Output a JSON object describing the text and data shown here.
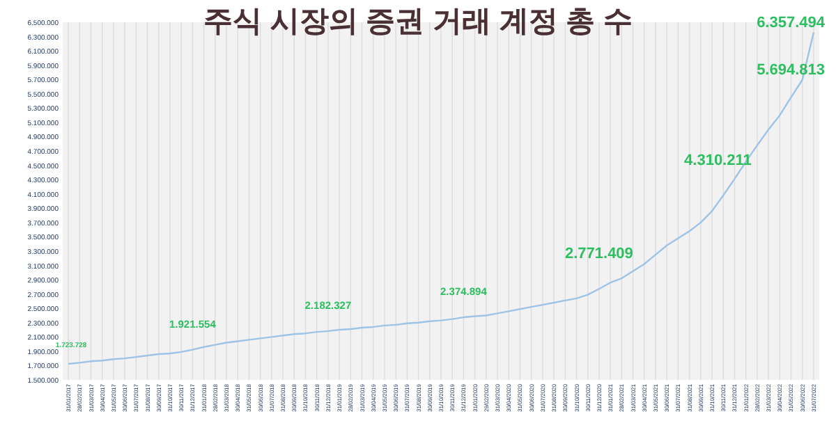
{
  "chart_data": {
    "type": "line",
    "title": "주식 시장의 증권 거래 계정 총 수",
    "categories": [
      "31/01/2017",
      "28/02/2017",
      "31/03/2017",
      "30/04/2017",
      "31/05/2017",
      "30/06/2017",
      "31/07/2017",
      "31/08/2017",
      "30/09/2017",
      "31/10/2017",
      "30/11/2017",
      "31/12/2017",
      "31/01/2018",
      "28/02/2018",
      "31/03/2018",
      "30/04/2018",
      "31/05/2018",
      "30/06/2018",
      "31/07/2018",
      "31/08/2018",
      "30/09/2018",
      "31/10/2018",
      "30/11/2018",
      "31/12/2018",
      "31/01/2019",
      "28/02/2019",
      "31/03/2019",
      "30/04/2019",
      "31/05/2019",
      "30/06/2019",
      "31/07/2019",
      "31/08/2019",
      "30/09/2019",
      "31/10/2019",
      "30/11/2019",
      "31/12/2019",
      "31/01/2020",
      "29/02/2020",
      "31/03/2020",
      "30/04/2020",
      "31/05/2020",
      "30/06/2020",
      "31/07/2020",
      "31/08/2020",
      "30/09/2020",
      "31/10/2020",
      "30/11/2020",
      "31/12/2020",
      "31/01/2021",
      "28/02/2021",
      "31/03/2021",
      "30/04/2021",
      "31/05/2021",
      "30/06/2021",
      "31/07/2021",
      "31/08/2021",
      "30/09/2021",
      "31/10/2021",
      "30/11/2021",
      "31/12/2021",
      "31/01/2022",
      "28/02/2022",
      "31/03/2022",
      "30/04/2022",
      "31/05/2022",
      "30/06/2022",
      "31/07/2022"
    ],
    "series": [
      {
        "color": "#9dc3e6",
        "values": [
          1723728,
          1740000,
          1760000,
          1770000,
          1790000,
          1800000,
          1820000,
          1840000,
          1860000,
          1870000,
          1890000,
          1921554,
          1960000,
          1990000,
          2020000,
          2040000,
          2060000,
          2080000,
          2100000,
          2120000,
          2140000,
          2150000,
          2170000,
          2182327,
          2200000,
          2210000,
          2230000,
          2240000,
          2260000,
          2270000,
          2290000,
          2300000,
          2320000,
          2330000,
          2350000,
          2374894,
          2390000,
          2400000,
          2430000,
          2460000,
          2490000,
          2520000,
          2550000,
          2580000,
          2610000,
          2640000,
          2690000,
          2771409,
          2860000,
          2920000,
          3020000,
          3120000,
          3250000,
          3380000,
          3480000,
          3580000,
          3700000,
          3860000,
          4080000,
          4310211,
          4550000,
          4780000,
          5000000,
          5200000,
          5450000,
          5694813,
          6357494
        ],
        "value_labels": [
          "1.723.728",
          null,
          null,
          null,
          null,
          null,
          null,
          null,
          null,
          null,
          null,
          "1.921.554",
          null,
          null,
          null,
          null,
          null,
          null,
          null,
          null,
          null,
          null,
          null,
          "2.182.327",
          null,
          null,
          null,
          null,
          null,
          null,
          null,
          null,
          null,
          null,
          null,
          "2.374.894",
          null,
          null,
          null,
          null,
          null,
          null,
          null,
          null,
          null,
          null,
          null,
          "2.771.409",
          null,
          null,
          null,
          null,
          null,
          null,
          null,
          null,
          null,
          null,
          null,
          "4.310.211",
          null,
          null,
          null,
          null,
          null,
          "5.694.813",
          "6.357.494"
        ]
      }
    ],
    "ylim": [
      1500000,
      6500000
    ],
    "yticks": [
      {
        "value": 1500000,
        "label": "1.500.000"
      },
      {
        "value": 1700000,
        "label": "1.700.000"
      },
      {
        "value": 1900000,
        "label": "1.900.000"
      },
      {
        "value": 2100000,
        "label": "2.100.000"
      },
      {
        "value": 2300000,
        "label": "2.300.000"
      },
      {
        "value": 2500000,
        "label": "2.500.000"
      },
      {
        "value": 2700000,
        "label": "2.700.000"
      },
      {
        "value": 2900000,
        "label": "2.900.000"
      },
      {
        "value": 3100000,
        "label": "3.100.000"
      },
      {
        "value": 3300000,
        "label": "3.300.000"
      },
      {
        "value": 3500000,
        "label": "3.500.000"
      },
      {
        "value": 3700000,
        "label": "3.700.000"
      },
      {
        "value": 3900000,
        "label": "3.900.000"
      },
      {
        "value": 4100000,
        "label": "4.100.000"
      },
      {
        "value": 4300000,
        "label": "4.300.000"
      },
      {
        "value": 4500000,
        "label": "4.500.000"
      },
      {
        "value": 4700000,
        "label": "4.700.000"
      },
      {
        "value": 4900000,
        "label": "4.900.000"
      },
      {
        "value": 5100000,
        "label": "5.100.000"
      },
      {
        "value": 5300000,
        "label": "5.300.000"
      },
      {
        "value": 5500000,
        "label": "5.500.000"
      },
      {
        "value": 5700000,
        "label": "5.700.000"
      },
      {
        "value": 5900000,
        "label": "5.900.000"
      },
      {
        "value": 6100000,
        "label": "6.100.000"
      },
      {
        "value": 6300000,
        "label": "6.300.000"
      },
      {
        "value": 6500000,
        "label": "6.500.000"
      }
    ],
    "grid": "x",
    "marker": "none",
    "line_style": "solid"
  }
}
